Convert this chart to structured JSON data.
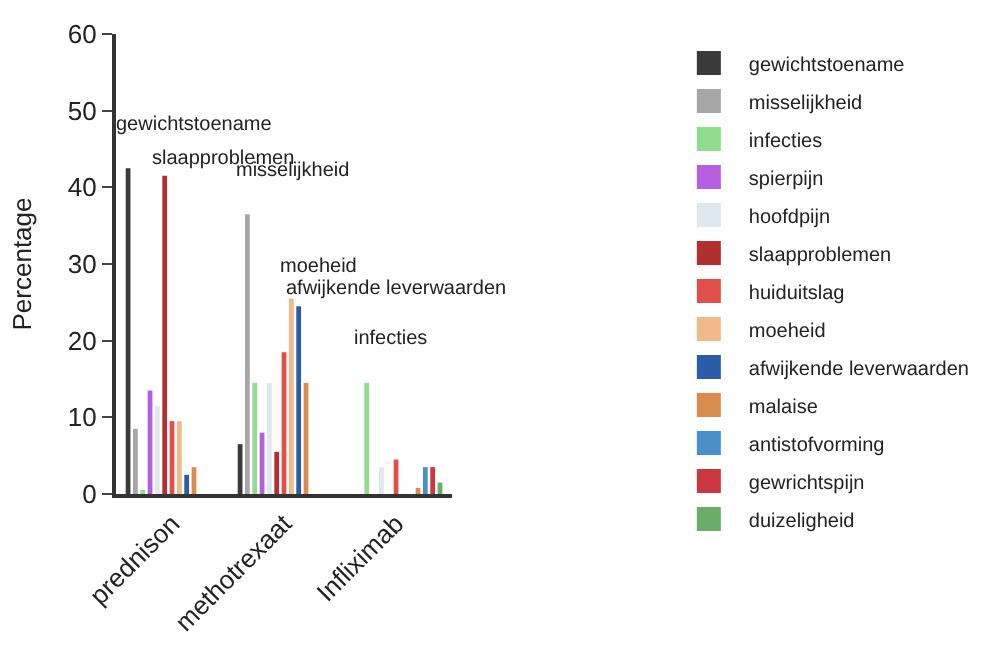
{
  "chart_data": {
    "type": "bar",
    "ylabel": "Percentage",
    "categories": [
      "prednison",
      "methotrexaat",
      "Infliximab"
    ],
    "ylim": [
      0,
      60
    ],
    "yticks": [
      0,
      10,
      20,
      30,
      40,
      50,
      60
    ],
    "grid": false,
    "legend": "right",
    "tick_labels": "xy",
    "series": [
      {
        "name": "gewichtstoename",
        "color": "#3a3a3a",
        "values": [
          42.5,
          6.5,
          null
        ]
      },
      {
        "name": "misselijkheid",
        "color": "#a6a6a6",
        "values": [
          8.5,
          36.5,
          null
        ]
      },
      {
        "name": "infecties",
        "color": "#8fdc8f",
        "values": [
          0.5,
          14.5,
          14.5
        ]
      },
      {
        "name": "spierpijn",
        "color": "#b65ee0",
        "values": [
          13.5,
          8,
          null
        ]
      },
      {
        "name": "hoofdpijn",
        "color": "#dfe8ee",
        "values": [
          11.5,
          14.5,
          3.5
        ]
      },
      {
        "name": "slaapproblemen",
        "color": "#b22f2f",
        "values": [
          41.5,
          5.5,
          null
        ]
      },
      {
        "name": "huiduitslag",
        "color": "#e0504a",
        "values": [
          9.5,
          18.5,
          4.5
        ]
      },
      {
        "name": "moeheid",
        "color": "#f2b98a",
        "values": [
          9.5,
          25.5,
          null
        ]
      },
      {
        "name": "afwijkende leverwaarden",
        "color": "#2a5ca8",
        "values": [
          2.5,
          24.5,
          null
        ]
      },
      {
        "name": "malaise",
        "color": "#d98c4e",
        "values": [
          3.5,
          14.5,
          0.8
        ]
      },
      {
        "name": "antistofvorming",
        "color": "#4a90c8",
        "values": [
          null,
          null,
          3.5
        ]
      },
      {
        "name": "gewrichtspijn",
        "color": "#c8383e",
        "values": [
          null,
          null,
          3.5
        ]
      },
      {
        "name": "duizeligheid",
        "color": "#6aad6a",
        "values": [
          null,
          null,
          1.5
        ]
      }
    ],
    "annotations": [
      "gewichtstoename",
      {
        "text": "slaapproblemen",
        "x": "prednison",
        "y": 41.5
      },
      "misselijkheid",
      {
        "text": "moeheid",
        "x": "methotrexaat",
        "y": 25.5
      },
      {
        "text": "afwijkende leverwaarden",
        "x": "methotrexaat",
        "y": 24.5
      },
      "infecties"
    ]
  }
}
